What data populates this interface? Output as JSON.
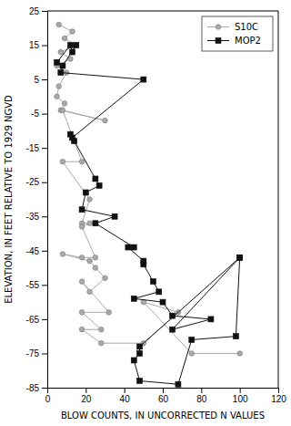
{
  "chart_data": {
    "type": "line",
    "xlabel": "BLOW COUNTS, IN UNCORRECTED N VALUES",
    "ylabel": "ELEVATION, IN FEET RELATIVE TO 1929 NGVD",
    "xlim": [
      0,
      120
    ],
    "ylim": [
      -85,
      25
    ],
    "xticks": [
      0,
      20,
      40,
      60,
      80,
      100,
      120
    ],
    "yticks": [
      25,
      15,
      5,
      -5,
      -15,
      -25,
      -35,
      -45,
      -55,
      -65,
      -75,
      -85
    ],
    "grid": false,
    "legend": "upper right",
    "series": [
      {
        "name": "S10C",
        "color": "#aaaaaa",
        "marker": "circle",
        "x": [
          6,
          13,
          9,
          15,
          7,
          12,
          5,
          10,
          6,
          5,
          9,
          7,
          30,
          8,
          18,
          8,
          22,
          18,
          22,
          18,
          25,
          18,
          8,
          22,
          25,
          30,
          22,
          18,
          32,
          18,
          28,
          18,
          28,
          50,
          68,
          50,
          75,
          100
        ],
        "values": [
          21,
          19,
          17,
          15,
          13,
          11,
          9,
          7,
          3,
          0,
          -2,
          -4,
          -7,
          -4,
          -19,
          -19,
          -30,
          -37,
          -37,
          -38,
          -47,
          -47,
          -46,
          -48,
          -50,
          -53,
          -57,
          -54,
          -63,
          -63,
          -68,
          -68,
          -72,
          -72,
          -63,
          -60,
          -75,
          -75
        ]
      },
      {
        "name": "MOP2",
        "color": "#111111",
        "marker": "square",
        "x": [
          5,
          12,
          13,
          15,
          8,
          7,
          50,
          13,
          14,
          12,
          25,
          27,
          20,
          18,
          35,
          25,
          45,
          42,
          50,
          50,
          55,
          58,
          45,
          60,
          65,
          85,
          65,
          100,
          48,
          48,
          45,
          48,
          68,
          75,
          98,
          100
        ],
        "values": [
          10,
          15,
          13,
          15,
          9,
          7,
          5,
          -12,
          -13,
          -11,
          -24,
          -26,
          -28,
          -33,
          -35,
          -37,
          -44,
          -44,
          -48,
          -49,
          -54,
          -57,
          -59,
          -60,
          -64,
          -65,
          -68,
          -47,
          -73,
          -75,
          -77,
          -83,
          -84,
          -71,
          -70,
          -47
        ]
      }
    ]
  }
}
